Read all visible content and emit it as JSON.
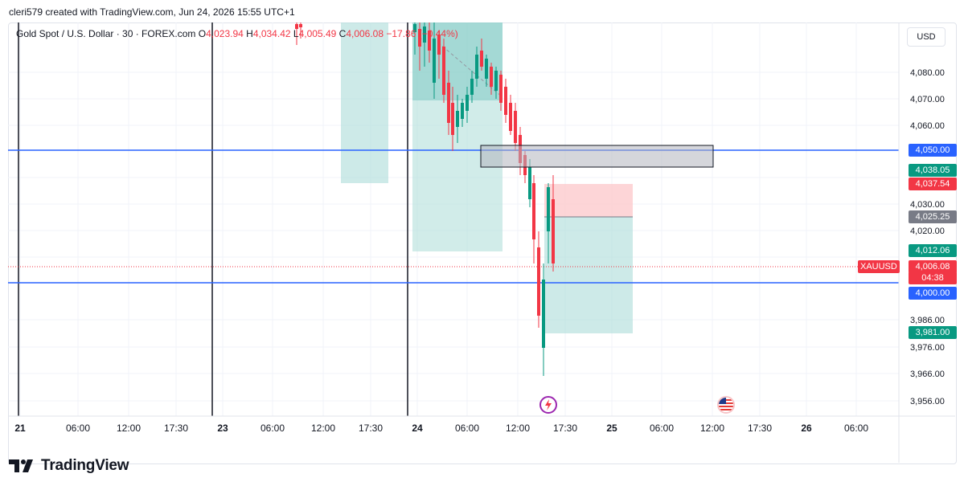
{
  "header": {
    "attribution": "cleri579 created with TradingView.com, Jun 24, 2026 15:55 UTC+1"
  },
  "legend": {
    "symbol": "Gold Spot / U.S. Dollar · 30 · FOREX.com",
    "open_label": "O",
    "open": "4,023.94",
    "high_label": "H",
    "high": "4,034.42",
    "low_label": "L",
    "low": "4,005.49",
    "close_label": "C",
    "close": "4,006.08",
    "change": "−17.86 (−0.44%)"
  },
  "currency_button": "USD",
  "price_axis_ticks": [
    "4,080.00",
    "4,070.00",
    "4,060.00",
    "4,030.00",
    "4,020.00",
    "3,986.00",
    "3,976.00",
    "3,966.00",
    "3,956.00"
  ],
  "price_tags": [
    {
      "label": "4,050.00",
      "color": "#2962ff"
    },
    {
      "label": "4,038.05",
      "color": "#089981"
    },
    {
      "label": "4,037.54",
      "color": "#f23645"
    },
    {
      "label": "4,025.25",
      "color": "#787b86"
    },
    {
      "label": "4,012.06",
      "color": "#089981"
    },
    {
      "label": "4,006.08",
      "color": "#f23645"
    },
    {
      "label": "04:38",
      "color": "#f23645"
    },
    {
      "label": "4,000.00",
      "color": "#2962ff"
    },
    {
      "label": "3,981.00",
      "color": "#089981"
    }
  ],
  "symbol_tag": "XAUUSD",
  "time_axis_ticks": [
    "21",
    "06:00",
    "12:00",
    "17:30",
    "23",
    "06:00",
    "12:00",
    "17:30",
    "24",
    "06:00",
    "12:00",
    "17:30",
    "25",
    "06:00",
    "12:00",
    "17:30",
    "26",
    "06:00"
  ],
  "footer": {
    "brand": "TradingView"
  },
  "colors": {
    "up": "#089981",
    "down": "#f23645",
    "hline": "#2962ff",
    "zone_green": "#b2dfdb",
    "zone_red": "#fccbcd"
  },
  "icons": {
    "event_1": "lightning-icon",
    "event_2": "us-flag-icon"
  }
}
